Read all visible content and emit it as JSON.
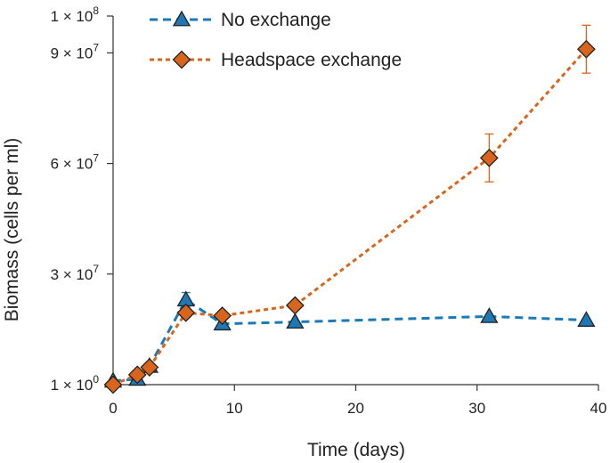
{
  "chart_data": {
    "type": "line",
    "xlabel": "Time (days)",
    "ylabel": "Biomass (cells per ml)",
    "xlim": [
      0,
      40
    ],
    "ylim": [
      1,
      100000000
    ],
    "x_ticks": [
      {
        "value": 0,
        "label": "0"
      },
      {
        "value": 10,
        "label": "10"
      },
      {
        "value": 20,
        "label": "20"
      },
      {
        "value": 30,
        "label": "30"
      },
      {
        "value": 40,
        "label": "40"
      }
    ],
    "y_ticks": [
      {
        "value": 1,
        "mantissa": "1 × 10",
        "exp": "0"
      },
      {
        "value": 30000000,
        "mantissa": "3 × 10",
        "exp": "7"
      },
      {
        "value": 60000000,
        "mantissa": "6 × 10",
        "exp": "7"
      },
      {
        "value": 90000000,
        "mantissa": "9 × 10",
        "exp": "7"
      },
      {
        "value": 100000000,
        "mantissa": "1 × 10",
        "exp": "8"
      }
    ],
    "grid": false,
    "legend_position": "top-left",
    "series": [
      {
        "name": "No exchange",
        "marker": "triangle",
        "line_style": "dashed",
        "color": "#1f77b4",
        "line_color": "#1a7ab8",
        "x": [
          0,
          2,
          3,
          6,
          9,
          15,
          31,
          39
        ],
        "y": [
          1000000,
          1500000,
          5000000,
          23000000,
          16500000,
          17000000,
          18500000,
          17500000
        ],
        "err": [
          0,
          0,
          0,
          2000000,
          0,
          0,
          0,
          0
        ]
      },
      {
        "name": "Headspace exchange",
        "marker": "diamond",
        "line_style": "dashed",
        "color": "#d8651b",
        "line_color": "#d8651b",
        "x": [
          0,
          2,
          3,
          6,
          9,
          15,
          31,
          39
        ],
        "y": [
          0,
          2700000,
          4700000,
          19500000,
          18700000,
          21500000,
          61500000,
          91000000
        ],
        "err": [
          0,
          0,
          0,
          0,
          0,
          0,
          6500000,
          6500000
        ]
      }
    ]
  }
}
